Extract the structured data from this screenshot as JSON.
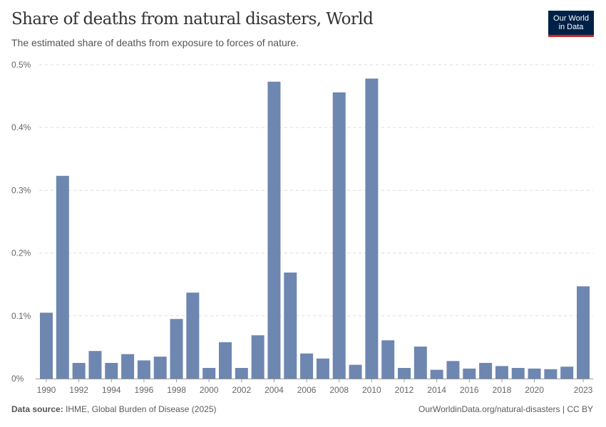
{
  "header": {
    "title": "Share of deaths from natural disasters, World",
    "subtitle": "The estimated share of deaths from exposure to forces of nature.",
    "logo_text": [
      "Our World",
      "in Data"
    ]
  },
  "footer": {
    "source_label": "Data source:",
    "source": "IHME, Global Burden of Disease (2025)",
    "url": "OurWorldinData.org/natural-disasters | CC BY"
  },
  "colors": {
    "bar": "#6d87b1",
    "logo_bg": "#002147",
    "logo_accent": "#ce261e"
  },
  "chart_data": {
    "type": "bar",
    "title": "Share of deaths from natural disasters, World",
    "xlabel": "",
    "ylabel": "",
    "unit": "%",
    "ylim": [
      0,
      0.5
    ],
    "yticks": [
      0,
      0.1,
      0.2,
      0.3,
      0.4,
      0.5
    ],
    "ytick_labels": [
      "0%",
      "0.1%",
      "0.2%",
      "0.3%",
      "0.4%",
      "0.5%"
    ],
    "xtick_labels": [
      "1990",
      "1992",
      "1994",
      "1996",
      "1998",
      "2000",
      "2002",
      "2004",
      "2006",
      "2008",
      "2010",
      "2012",
      "2014",
      "2016",
      "2018",
      "2020",
      "2023"
    ],
    "grid": "horizontal dashed",
    "categories": [
      1990,
      1991,
      1992,
      1993,
      1994,
      1995,
      1996,
      1997,
      1998,
      1999,
      2000,
      2001,
      2002,
      2003,
      2004,
      2005,
      2006,
      2007,
      2008,
      2009,
      2010,
      2011,
      2012,
      2013,
      2014,
      2015,
      2016,
      2017,
      2018,
      2019,
      2020,
      2021,
      2022,
      2023
    ],
    "values": [
      0.105,
      0.323,
      0.025,
      0.044,
      0.025,
      0.039,
      0.029,
      0.035,
      0.095,
      0.137,
      0.017,
      0.058,
      0.017,
      0.069,
      0.473,
      0.169,
      0.04,
      0.032,
      0.456,
      0.022,
      0.478,
      0.061,
      0.017,
      0.051,
      0.014,
      0.028,
      0.016,
      0.025,
      0.02,
      0.017,
      0.016,
      0.015,
      0.019,
      0.147
    ]
  }
}
